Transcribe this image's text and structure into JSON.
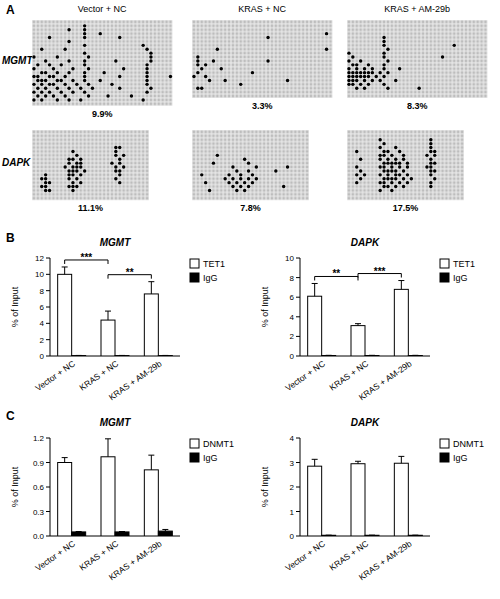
{
  "figure": {
    "panel_labels": [
      "A",
      "B",
      "C"
    ]
  },
  "methylation": {
    "conditions": [
      "Vector + NC",
      "KRAS + NC",
      "KRAS + AM-29b"
    ],
    "genes": [
      {
        "name": "MGMT",
        "sites": 36,
        "grids": [
          {
            "label": "9.9%",
            "clones": [
              [],
              [
                13
              ],
              [
                9,
                13
              ],
              [
                13,
                17
              ],
              [
                4,
                13,
                22
              ],
              [
                9
              ],
              [
                13,
                28
              ],
              [
                2,
                8,
                29
              ],
              [
                13,
                30
              ],
              [
                0,
                6,
                14,
                30
              ],
              [
                3,
                9,
                13,
                21,
                30
              ],
              [
                1,
                4,
                7,
                13,
                29
              ],
              [
                0,
                5,
                10,
                14,
                23,
                29
              ],
              [
                2,
                3,
                6,
                9,
                13,
                18,
                29
              ],
              [
                0,
                1,
                4,
                5,
                8,
                13,
                22,
                29,
                35
              ],
              [
                1,
                2,
                3,
                6,
                7,
                10,
                13,
                17,
                29
              ],
              [
                0,
                2,
                4,
                5,
                8,
                11,
                14,
                20,
                29
              ],
              [
                1,
                3,
                6,
                9,
                12,
                15,
                22,
                30
              ],
              [
                0,
                2,
                4,
                7,
                10,
                13,
                29
              ],
              [
                1,
                3,
                5,
                8,
                14,
                19,
                25
              ],
              [
                0,
                2,
                6,
                9,
                12,
                28
              ],
              []
            ]
          },
          {
            "label": "3.3%",
            "clones": [
              [],
              [],
              [],
              [
                34
              ],
              [
                19
              ],
              [],
              [],
              [
                6,
                34
              ],
              [],
              [
                1
              ],
              [
                1,
                5,
                19
              ],
              [
                1,
                3
              ],
              [
                2,
                7
              ],
              [
                1,
                15
              ],
              [
                0,
                3
              ],
              [
                4,
                8,
                24
              ],
              [
                12
              ],
              [
                1,
                2
              ],
              [],
              []
            ]
          },
          {
            "label": "8.3%",
            "clones": [
              [],
              [],
              [],
              [],
              [
                9
              ],
              [
                9
              ],
              [
                9,
                27
              ],
              [
                10
              ],
              [
                0,
                9
              ],
              [
                1,
                9,
                24
              ],
              [
                0,
                3,
                10
              ],
              [
                1,
                2,
                5,
                9
              ],
              [
                0,
                2,
                4,
                6,
                9,
                13
              ],
              [
                0,
                1,
                2,
                3,
                4,
                5,
                6,
                8,
                10
              ],
              [
                0,
                1,
                2,
                3,
                4,
                5,
                7,
                9
              ],
              [
                0,
                1,
                2,
                4,
                6,
                8,
                12
              ],
              [
                0,
                1,
                3,
                5,
                9
              ],
              [
                2,
                4,
                10,
                18
              ],
              [],
              []
            ]
          }
        ]
      },
      {
        "name": "DAPK",
        "sites": 30,
        "grids": [
          {
            "label": "11.1%",
            "clones": [
              [],
              [],
              [],
              [],
              [
                21,
                22
              ],
              [
                10,
                21
              ],
              [
                11,
                21,
                23
              ],
              [
                9,
                10,
                12,
                22
              ],
              [
                9,
                11,
                12,
                20,
                22
              ],
              [
                8,
                10,
                11,
                12,
                21,
                23
              ],
              [
                9,
                10,
                11,
                13,
                21,
                22
              ],
              [
                3,
                9,
                10,
                12,
                22
              ],
              [
                2,
                3,
                9,
                11,
                21
              ],
              [
                3,
                4,
                10,
                12,
                22
              ],
              [
                2,
                3,
                9,
                10,
                11
              ],
              [
                3,
                4,
                10
              ],
              [],
              []
            ]
          },
          {
            "label": "7.8%",
            "clones": [
              [],
              [],
              [],
              [],
              [],
              [],
              [
                6
              ],
              [
                13
              ],
              [
                5,
                14
              ],
              [
                10,
                16,
                24
              ],
              [
                11,
                14,
                21
              ],
              [
                2,
                9,
                12,
                15
              ],
              [
                8,
                10,
                12,
                14,
                16
              ],
              [
                3,
                9,
                11,
                13,
                15
              ],
              [
                10,
                12,
                14,
                23
              ],
              [
                4,
                11,
                13
              ],
              [],
              []
            ]
          },
          {
            "label": "17.5%",
            "clones": [
              [],
              [],
              [
                8,
                21
              ],
              [
                9,
                21
              ],
              [
                8,
                12,
                21
              ],
              [
                2,
                9,
                10,
                13,
                21,
                22
              ],
              [
                8,
                9,
                11,
                14,
                20,
                22
              ],
              [
                3,
                8,
                10,
                12,
                14,
                21
              ],
              [
                9,
                10,
                11,
                12,
                13,
                15,
                21,
                22
              ],
              [
                2,
                8,
                9,
                11,
                13,
                15,
                20,
                21
              ],
              [
                3,
                9,
                10,
                11,
                12,
                14,
                21,
                22
              ],
              [
                2,
                4,
                8,
                10,
                12,
                13,
                15,
                21
              ],
              [
                3,
                9,
                10,
                11,
                12,
                14,
                16,
                22
              ],
              [
                2,
                8,
                9,
                11,
                13,
                15,
                21
              ],
              [
                9,
                10,
                12,
                14,
                21
              ],
              [
                8,
                11
              ],
              [],
              []
            ]
          }
        ]
      }
    ]
  },
  "chart_data": [
    {
      "type": "bar",
      "title": "MGMT",
      "y_label": "% of Input",
      "categories": [
        "Vector + NC",
        "KRAS + NC",
        "KRAS + AM-29b"
      ],
      "series": [
        {
          "name": "TET1",
          "color": "#ffffff",
          "values": [
            10.0,
            4.4,
            7.6
          ],
          "errors": [
            0.9,
            1.1,
            1.5
          ]
        },
        {
          "name": "IgG",
          "color": "#000000",
          "values": [
            0.05,
            0.05,
            0.05
          ],
          "errors": [
            0.02,
            0.02,
            0.02
          ]
        }
      ],
      "ylim": [
        0,
        12
      ],
      "yticks": [
        0,
        2,
        4,
        6,
        8,
        10,
        12
      ],
      "legend": "right",
      "annotations": [
        {
          "from": 0,
          "to": 1,
          "label": "***"
        },
        {
          "from": 1,
          "to": 2,
          "label": "**"
        }
      ]
    },
    {
      "type": "bar",
      "title": "DAPK",
      "y_label": "% of Input",
      "categories": [
        "Vector + NC",
        "KRAS + NC",
        "KRAS + AM-29b"
      ],
      "series": [
        {
          "name": "TET1",
          "color": "#ffffff",
          "values": [
            6.1,
            3.1,
            6.8
          ],
          "errors": [
            1.3,
            0.2,
            0.9
          ]
        },
        {
          "name": "IgG",
          "color": "#000000",
          "values": [
            0.05,
            0.05,
            0.05
          ],
          "errors": [
            0.02,
            0.02,
            0.02
          ]
        }
      ],
      "ylim": [
        0,
        10
      ],
      "yticks": [
        0,
        2,
        4,
        6,
        8,
        10
      ],
      "legend": "right",
      "annotations": [
        {
          "from": 0,
          "to": 1,
          "label": "**"
        },
        {
          "from": 1,
          "to": 2,
          "label": "***"
        }
      ]
    },
    {
      "type": "bar",
      "title": "MGMT",
      "y_label": "% of Input",
      "categories": [
        "Vector + NC",
        "KRAS + NC",
        "KRAS + AM-29b"
      ],
      "series": [
        {
          "name": "DNMT1",
          "color": "#ffffff",
          "values": [
            0.9,
            0.97,
            0.81
          ],
          "errors": [
            0.06,
            0.22,
            0.18
          ]
        },
        {
          "name": "IgG",
          "color": "#000000",
          "values": [
            0.05,
            0.05,
            0.06
          ],
          "errors": [
            0.005,
            0.005,
            0.02
          ]
        }
      ],
      "ylim": [
        0,
        1.2
      ],
      "yticks": [
        {
          "value": 0,
          "label": "0.0"
        },
        0.3,
        0.6,
        0.9,
        1.2
      ],
      "legend": "right"
    },
    {
      "type": "bar",
      "title": "DAPK",
      "y_label": "% of Input",
      "categories": [
        "Vector + NC",
        "KRAS + NC",
        "KRAS + AM-29b"
      ],
      "series": [
        {
          "name": "DNMT1",
          "color": "#ffffff",
          "values": [
            2.85,
            2.95,
            2.97
          ],
          "errors": [
            0.28,
            0.1,
            0.28
          ]
        },
        {
          "name": "IgG",
          "color": "#000000",
          "values": [
            0.03,
            0.03,
            0.03
          ],
          "errors": [
            0.005,
            0.005,
            0.005
          ]
        }
      ],
      "ylim": [
        0,
        4
      ],
      "yticks": [
        0,
        1,
        2,
        3,
        4
      ],
      "legend": "right"
    }
  ]
}
